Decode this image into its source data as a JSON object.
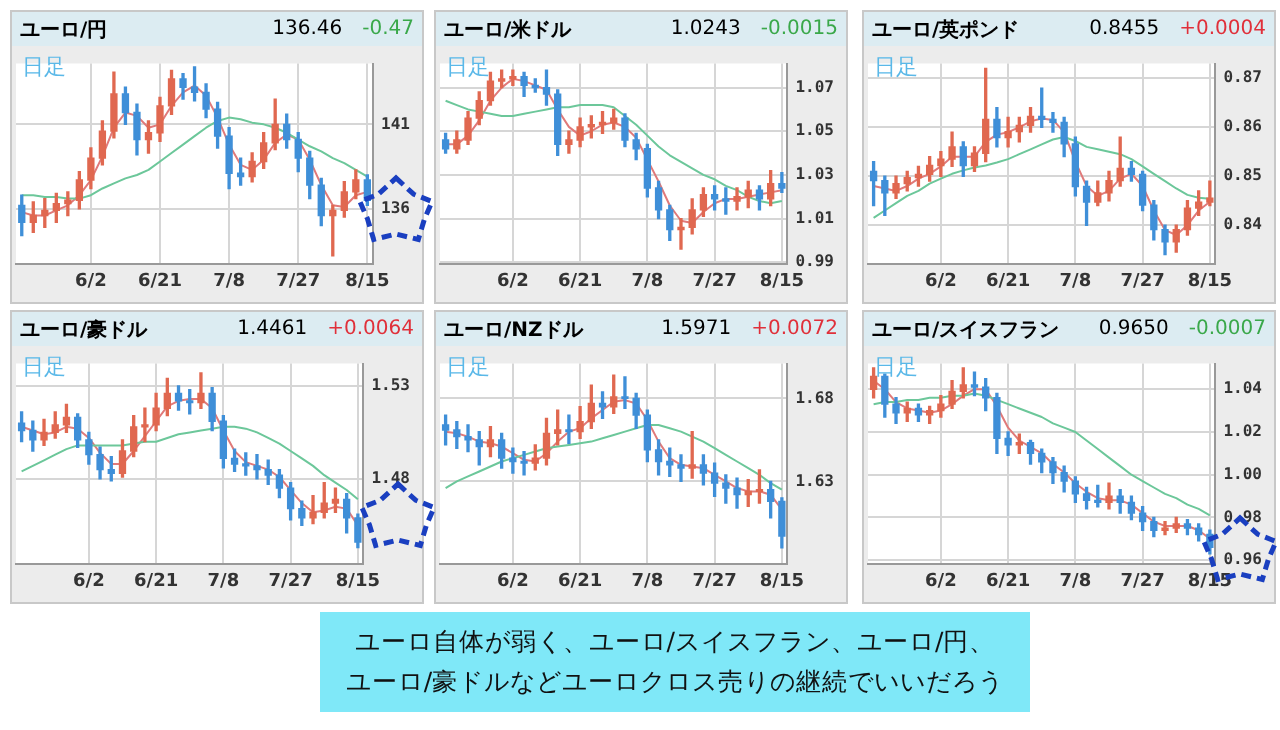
{
  "chart_data": [
    {
      "type": "candlestick",
      "title": "ユーロ/円",
      "annotations": [
        "136.46",
        "-0.47",
        "日足"
      ],
      "categories": [
        null,
        null,
        null,
        null,
        null,
        null,
        "6/2",
        null,
        null,
        null,
        null,
        null,
        "6/21",
        null,
        null,
        null,
        null,
        null,
        "7/8",
        null,
        null,
        null,
        null,
        null,
        "7/27",
        null,
        null,
        null,
        null,
        null,
        "8/15"
      ],
      "ohlc": [
        [
          136.2,
          136.8,
          134.4,
          135.2
        ],
        [
          135.2,
          136.4,
          134.6,
          135.6
        ],
        [
          135.6,
          136.6,
          134.9,
          135.9
        ],
        [
          135.9,
          136.9,
          135.2,
          136.3
        ],
        [
          136.3,
          137.0,
          135.6,
          136.5
        ],
        [
          136.5,
          138.2,
          136.0,
          137.7
        ],
        [
          137.7,
          139.6,
          137.2,
          139.0
        ],
        [
          139.0,
          141.2,
          138.6,
          140.6
        ],
        [
          140.6,
          144.1,
          140.2,
          142.8
        ],
        [
          142.8,
          143.2,
          141.0,
          141.7
        ],
        [
          141.7,
          142.2,
          139.2,
          140.1
        ],
        [
          140.1,
          141.2,
          139.3,
          140.5
        ],
        [
          140.5,
          142.6,
          140.0,
          142.1
        ],
        [
          142.1,
          144.2,
          141.6,
          143.7
        ],
        [
          143.7,
          144.0,
          142.5,
          143.2
        ],
        [
          143.2,
          144.4,
          142.4,
          142.9
        ],
        [
          142.9,
          143.4,
          141.4,
          141.9
        ],
        [
          141.9,
          142.3,
          139.6,
          140.3
        ],
        [
          140.3,
          140.8,
          137.2,
          138.1
        ],
        [
          138.1,
          139.0,
          137.4,
          137.9
        ],
        [
          137.9,
          139.3,
          137.6,
          138.8
        ],
        [
          138.8,
          140.5,
          138.4,
          139.9
        ],
        [
          139.9,
          142.5,
          139.5,
          141.0
        ],
        [
          141.0,
          141.6,
          139.6,
          140.1
        ],
        [
          140.1,
          140.5,
          138.2,
          139.0
        ],
        [
          139.0,
          139.4,
          136.6,
          137.4
        ],
        [
          137.4,
          137.8,
          135.0,
          135.6
        ],
        [
          135.6,
          136.2,
          133.2,
          135.9
        ],
        [
          135.9,
          137.6,
          135.5,
          137.0
        ],
        [
          137.0,
          138.3,
          136.6,
          137.7
        ],
        [
          137.7,
          138.0,
          136.2,
          136.5
        ]
      ],
      "colors": [
        "#3f8fd8",
        "#e06850",
        "#e06850",
        "#e06850",
        "#e06850",
        "#e06850",
        "#e06850",
        "#e06850",
        "#e06850",
        "#3f8fd8",
        "#3f8fd8",
        "#e06850",
        "#e06850",
        "#e06850",
        "#3f8fd8",
        "#3f8fd8",
        "#3f8fd8",
        "#3f8fd8",
        "#3f8fd8",
        "#3f8fd8",
        "#e06850",
        "#e06850",
        "#e06850",
        "#3f8fd8",
        "#3f8fd8",
        "#3f8fd8",
        "#3f8fd8",
        "#e06850",
        "#e06850",
        "#e06850",
        "#3f8fd8"
      ],
      "series": [
        {
          "type": "line",
          "color": "#6cc79a",
          "values": [
            136.8,
            136.8,
            136.7,
            136.7,
            136.6,
            136.6,
            136.8,
            137.2,
            137.5,
            137.8,
            138.0,
            138.3,
            138.8,
            139.3,
            139.8,
            140.3,
            140.8,
            141.2,
            141.4,
            141.3,
            141.1,
            141.0,
            140.8,
            140.5,
            140.1,
            139.7,
            139.4,
            139.0,
            138.7,
            138.3,
            137.9
          ]
        },
        {
          "type": "line",
          "color": "#e07a7a",
          "values": [
            135.8,
            135.6,
            135.6,
            135.9,
            136.2,
            136.8,
            137.7,
            139.1,
            140.8,
            141.7,
            141.5,
            140.8,
            141.0,
            142.1,
            142.9,
            143.3,
            142.7,
            141.4,
            139.8,
            138.6,
            138.3,
            138.9,
            139.9,
            140.4,
            140.1,
            138.9,
            137.4,
            136.2,
            136.1,
            136.8,
            137.0
          ]
        }
      ],
      "ylim": [
        132.7,
        144.6
      ],
      "yticks": [
        141,
        136
      ],
      "grid": true
    },
    {
      "type": "candlestick",
      "title": "ユーロ/米ドル",
      "annotations": [
        "1.0243",
        "-0.0015",
        "日足"
      ],
      "categories": [
        null,
        null,
        null,
        null,
        null,
        null,
        "6/2",
        null,
        null,
        null,
        null,
        null,
        "6/21",
        null,
        null,
        null,
        null,
        null,
        "7/8",
        null,
        null,
        null,
        null,
        null,
        "7/27",
        null,
        null,
        null,
        null,
        null,
        "8/15"
      ],
      "ohlc": [
        [
          1.046,
          1.049,
          1.04,
          1.042
        ],
        [
          1.042,
          1.05,
          1.04,
          1.046
        ],
        [
          1.046,
          1.059,
          1.044,
          1.056
        ],
        [
          1.056,
          1.068,
          1.053,
          1.064
        ],
        [
          1.064,
          1.077,
          1.062,
          1.073
        ],
        [
          1.073,
          1.078,
          1.07,
          1.074
        ],
        [
          1.074,
          1.078,
          1.071,
          1.075
        ],
        [
          1.075,
          1.077,
          1.066,
          1.071
        ],
        [
          1.071,
          1.074,
          1.068,
          1.07
        ],
        [
          1.07,
          1.078,
          1.062,
          1.067
        ],
        [
          1.067,
          1.069,
          1.039,
          1.044
        ],
        [
          1.044,
          1.05,
          1.04,
          1.046
        ],
        [
          1.046,
          1.056,
          1.043,
          1.052
        ],
        [
          1.052,
          1.057,
          1.047,
          1.053
        ],
        [
          1.053,
          1.059,
          1.049,
          1.054
        ],
        [
          1.054,
          1.06,
          1.051,
          1.056
        ],
        [
          1.056,
          1.058,
          1.043,
          1.046
        ],
        [
          1.046,
          1.049,
          1.037,
          1.042
        ],
        [
          1.042,
          1.044,
          1.02,
          1.024
        ],
        [
          1.024,
          1.027,
          1.01,
          1.014
        ],
        [
          1.014,
          1.016,
          1.0,
          1.005
        ],
        [
          1.005,
          1.01,
          0.996,
          1.006
        ],
        [
          1.006,
          1.019,
          1.003,
          1.014
        ],
        [
          1.014,
          1.024,
          1.011,
          1.021
        ],
        [
          1.021,
          1.025,
          1.014,
          1.019
        ],
        [
          1.019,
          1.024,
          1.012,
          1.018
        ],
        [
          1.018,
          1.024,
          1.014,
          1.02
        ],
        [
          1.02,
          1.027,
          1.015,
          1.023
        ],
        [
          1.023,
          1.025,
          1.014,
          1.019
        ],
        [
          1.019,
          1.032,
          1.016,
          1.026
        ],
        [
          1.026,
          1.031,
          1.022,
          1.024
        ]
      ],
      "colors": [
        "#3f8fd8",
        "#e06850",
        "#e06850",
        "#e06850",
        "#e06850",
        "#e06850",
        "#e06850",
        "#3f8fd8",
        "#3f8fd8",
        "#3f8fd8",
        "#3f8fd8",
        "#e06850",
        "#e06850",
        "#e06850",
        "#e06850",
        "#e06850",
        "#3f8fd8",
        "#3f8fd8",
        "#3f8fd8",
        "#3f8fd8",
        "#3f8fd8",
        "#e06850",
        "#e06850",
        "#e06850",
        "#3f8fd8",
        "#3f8fd8",
        "#e06850",
        "#e06850",
        "#3f8fd8",
        "#e06850",
        "#3f8fd8"
      ],
      "series": [
        {
          "type": "line",
          "color": "#6cc79a",
          "values": [
            1.064,
            1.062,
            1.06,
            1.059,
            1.058,
            1.057,
            1.057,
            1.058,
            1.059,
            1.06,
            1.061,
            1.061,
            1.062,
            1.062,
            1.062,
            1.061,
            1.057,
            1.053,
            1.048,
            1.043,
            1.039,
            1.036,
            1.033,
            1.03,
            1.028,
            1.025,
            1.023,
            1.02,
            1.018,
            1.017,
            1.018
          ]
        },
        {
          "type": "line",
          "color": "#e07a7a",
          "values": [
            1.044,
            1.044,
            1.048,
            1.055,
            1.064,
            1.07,
            1.074,
            1.073,
            1.071,
            1.069,
            1.06,
            1.052,
            1.048,
            1.05,
            1.053,
            1.054,
            1.052,
            1.047,
            1.037,
            1.027,
            1.016,
            1.009,
            1.008,
            1.013,
            1.017,
            1.019,
            1.019,
            1.02,
            1.021,
            1.022,
            1.023
          ]
        }
      ],
      "ylim": [
        0.989,
        1.081
      ],
      "yticks": [
        1.07,
        1.05,
        1.03,
        1.01,
        0.99
      ],
      "grid": true
    },
    {
      "type": "candlestick",
      "title": "ユーロ/英ポンド",
      "annotations": [
        "0.8455",
        "+0.0004",
        "日足"
      ],
      "categories": [
        null,
        null,
        null,
        null,
        null,
        null,
        "6/2",
        null,
        null,
        null,
        null,
        null,
        "6/21",
        null,
        null,
        null,
        null,
        null,
        "7/8",
        null,
        null,
        null,
        null,
        null,
        "7/27",
        null,
        null,
        null,
        null,
        null,
        "8/15"
      ],
      "ohlc": [
        [
          0.851,
          0.853,
          0.844,
          0.8491
        ],
        [
          0.8491,
          0.85,
          0.842,
          0.8466
        ],
        [
          0.8466,
          0.85,
          0.8455,
          0.8485
        ],
        [
          0.8485,
          0.851,
          0.847,
          0.8497
        ],
        [
          0.8497,
          0.852,
          0.848,
          0.8504
        ],
        [
          0.8504,
          0.854,
          0.849,
          0.8522
        ],
        [
          0.8522,
          0.855,
          0.85,
          0.8535
        ],
        [
          0.8535,
          0.859,
          0.852,
          0.856
        ],
        [
          0.856,
          0.857,
          0.85,
          0.8522
        ],
        [
          0.8522,
          0.856,
          0.851,
          0.8547
        ],
        [
          0.8547,
          0.872,
          0.853,
          0.8616
        ],
        [
          0.8616,
          0.864,
          0.856,
          0.8579
        ],
        [
          0.8579,
          0.862,
          0.856,
          0.8591
        ],
        [
          0.8591,
          0.862,
          0.857,
          0.8604
        ],
        [
          0.8604,
          0.864,
          0.859,
          0.8622
        ],
        [
          0.8622,
          0.868,
          0.86,
          0.8616
        ],
        [
          0.8616,
          0.863,
          0.859,
          0.861
        ],
        [
          0.861,
          0.862,
          0.854,
          0.8566
        ],
        [
          0.8566,
          0.858,
          0.846,
          0.8479
        ],
        [
          0.8479,
          0.849,
          0.84,
          0.8447
        ],
        [
          0.8447,
          0.849,
          0.844,
          0.8466
        ],
        [
          0.8466,
          0.851,
          0.845,
          0.8491
        ],
        [
          0.8491,
          0.858,
          0.848,
          0.8516
        ],
        [
          0.8516,
          0.853,
          0.849,
          0.8504
        ],
        [
          0.8504,
          0.851,
          0.843,
          0.8441
        ],
        [
          0.8441,
          0.845,
          0.837,
          0.8391
        ],
        [
          0.8391,
          0.84,
          0.834,
          0.8366
        ],
        [
          0.8366,
          0.84,
          0.8345,
          0.8391
        ],
        [
          0.8391,
          0.845,
          0.838,
          0.8435
        ],
        [
          0.8435,
          0.847,
          0.842,
          0.8447
        ],
        [
          0.8447,
          0.849,
          0.844,
          0.8455
        ]
      ],
      "colors": [
        "#3f8fd8",
        "#3f8fd8",
        "#e06850",
        "#e06850",
        "#e06850",
        "#e06850",
        "#e06850",
        "#e06850",
        "#3f8fd8",
        "#e06850",
        "#e06850",
        "#3f8fd8",
        "#e06850",
        "#e06850",
        "#e06850",
        "#3f8fd8",
        "#3f8fd8",
        "#3f8fd8",
        "#3f8fd8",
        "#3f8fd8",
        "#e06850",
        "#e06850",
        "#e06850",
        "#3f8fd8",
        "#3f8fd8",
        "#3f8fd8",
        "#3f8fd8",
        "#e06850",
        "#e06850",
        "#e06850",
        "#e06850"
      ],
      "series": [
        {
          "type": "line",
          "color": "#6cc79a",
          "values": [
            0.8415,
            0.843,
            0.8445,
            0.846,
            0.847,
            0.8485,
            0.8495,
            0.8505,
            0.8512,
            0.8518,
            0.8522,
            0.8528,
            0.8535,
            0.8545,
            0.8555,
            0.8565,
            0.8575,
            0.858,
            0.8572,
            0.856,
            0.8555,
            0.855,
            0.8545,
            0.8535,
            0.852,
            0.8505,
            0.849,
            0.8475,
            0.8462,
            0.8456,
            0.8454
          ]
        },
        {
          "type": "line",
          "color": "#e07a7a",
          "values": [
            0.848,
            0.8475,
            0.847,
            0.848,
            0.8495,
            0.8505,
            0.852,
            0.854,
            0.854,
            0.854,
            0.857,
            0.8585,
            0.859,
            0.86,
            0.8612,
            0.8618,
            0.8615,
            0.859,
            0.853,
            0.848,
            0.846,
            0.847,
            0.8495,
            0.8505,
            0.848,
            0.843,
            0.839,
            0.838,
            0.84,
            0.843,
            0.8448
          ]
        }
      ],
      "ylim": [
        0.832,
        0.873
      ],
      "yticks": [
        0.87,
        0.86,
        0.85,
        0.84
      ],
      "grid": true
    },
    {
      "type": "candlestick",
      "title": "ユーロ/豪ドル",
      "annotations": [
        "1.4461",
        "+0.0064",
        "日足"
      ],
      "categories": [
        null,
        null,
        null,
        null,
        null,
        null,
        "6/2",
        null,
        null,
        null,
        null,
        null,
        "6/21",
        null,
        null,
        null,
        null,
        null,
        "7/8",
        null,
        null,
        null,
        null,
        null,
        "7/27",
        null,
        null,
        null,
        null,
        null,
        "8/15"
      ],
      "ohlc": [
        [
          1.51,
          1.516,
          1.5,
          1.506
        ],
        [
          1.506,
          1.511,
          1.495,
          1.501
        ],
        [
          1.501,
          1.512,
          1.498,
          1.505
        ],
        [
          1.505,
          1.516,
          1.502,
          1.509
        ],
        [
          1.509,
          1.52,
          1.505,
          1.513
        ],
        [
          1.513,
          1.515,
          1.497,
          1.501
        ],
        [
          1.501,
          1.505,
          1.488,
          1.493
        ],
        [
          1.493,
          1.497,
          1.48,
          1.485
        ],
        [
          1.485,
          1.492,
          1.479,
          1.483
        ],
        [
          1.483,
          1.501,
          1.481,
          1.495
        ],
        [
          1.495,
          1.514,
          1.492,
          1.508
        ],
        [
          1.508,
          1.518,
          1.5,
          1.509
        ],
        [
          1.509,
          1.526,
          1.506,
          1.518
        ],
        [
          1.518,
          1.534,
          1.514,
          1.526
        ],
        [
          1.526,
          1.53,
          1.517,
          1.522
        ],
        [
          1.522,
          1.528,
          1.515,
          1.521
        ],
        [
          1.521,
          1.537,
          1.518,
          1.526
        ],
        [
          1.526,
          1.529,
          1.506,
          1.511
        ],
        [
          1.511,
          1.514,
          1.486,
          1.491
        ],
        [
          1.491,
          1.496,
          1.484,
          1.488
        ],
        [
          1.488,
          1.494,
          1.482,
          1.487
        ],
        [
          1.487,
          1.493,
          1.48,
          1.485
        ],
        [
          1.485,
          1.49,
          1.477,
          1.482
        ],
        [
          1.482,
          1.485,
          1.47,
          1.475
        ],
        [
          1.475,
          1.478,
          1.458,
          1.464
        ],
        [
          1.464,
          1.468,
          1.455,
          1.459
        ],
        [
          1.459,
          1.471,
          1.456,
          1.462
        ],
        [
          1.462,
          1.478,
          1.459,
          1.467
        ],
        [
          1.467,
          1.475,
          1.462,
          1.469
        ],
        [
          1.469,
          1.472,
          1.451,
          1.459
        ],
        [
          1.459,
          1.461,
          1.443,
          1.446
        ]
      ],
      "colors": [
        "#3f8fd8",
        "#3f8fd8",
        "#e06850",
        "#e06850",
        "#e06850",
        "#3f8fd8",
        "#3f8fd8",
        "#3f8fd8",
        "#3f8fd8",
        "#e06850",
        "#e06850",
        "#e06850",
        "#e06850",
        "#e06850",
        "#3f8fd8",
        "#3f8fd8",
        "#e06850",
        "#3f8fd8",
        "#3f8fd8",
        "#3f8fd8",
        "#3f8fd8",
        "#3f8fd8",
        "#3f8fd8",
        "#3f8fd8",
        "#3f8fd8",
        "#3f8fd8",
        "#e06850",
        "#e06850",
        "#e06850",
        "#3f8fd8",
        "#3f8fd8"
      ],
      "series": [
        {
          "type": "line",
          "color": "#6cc79a",
          "values": [
            1.484,
            1.487,
            1.49,
            1.493,
            1.496,
            1.498,
            1.498,
            1.498,
            1.498,
            1.498,
            1.499,
            1.5,
            1.5,
            1.502,
            1.504,
            1.505,
            1.506,
            1.507,
            1.508,
            1.508,
            1.507,
            1.505,
            1.502,
            1.499,
            1.495,
            1.491,
            1.487,
            1.482,
            1.478,
            1.474,
            1.469
          ]
        },
        {
          "type": "line",
          "color": "#e07a7a",
          "values": [
            1.508,
            1.506,
            1.504,
            1.505,
            1.508,
            1.507,
            1.502,
            1.494,
            1.488,
            1.488,
            1.495,
            1.503,
            1.511,
            1.519,
            1.522,
            1.523,
            1.523,
            1.518,
            1.506,
            1.495,
            1.489,
            1.487,
            1.485,
            1.481,
            1.474,
            1.467,
            1.462,
            1.463,
            1.465,
            1.464,
            1.455
          ]
        }
      ],
      "ylim": [
        1.434,
        1.542
      ],
      "yticks": [
        1.53,
        1.48
      ],
      "grid": true
    },
    {
      "type": "candlestick",
      "title": "ユーロ/NZドル",
      "annotations": [
        "1.5971",
        "+0.0072",
        "日足"
      ],
      "categories": [
        null,
        null,
        null,
        null,
        null,
        null,
        "6/2",
        null,
        null,
        null,
        null,
        null,
        "6/21",
        null,
        null,
        null,
        null,
        null,
        "7/8",
        null,
        null,
        null,
        null,
        null,
        "7/27",
        null,
        null,
        null,
        null,
        null,
        "8/15"
      ],
      "ohlc": [
        [
          1.664,
          1.67,
          1.652,
          1.661
        ],
        [
          1.661,
          1.666,
          1.65,
          1.657
        ],
        [
          1.657,
          1.664,
          1.648,
          1.655
        ],
        [
          1.655,
          1.66,
          1.64,
          1.651
        ],
        [
          1.651,
          1.663,
          1.645,
          1.655
        ],
        [
          1.655,
          1.659,
          1.638,
          1.644
        ],
        [
          1.644,
          1.65,
          1.635,
          1.642
        ],
        [
          1.642,
          1.648,
          1.634,
          1.641
        ],
        [
          1.641,
          1.652,
          1.637,
          1.644
        ],
        [
          1.644,
          1.668,
          1.64,
          1.659
        ],
        [
          1.659,
          1.673,
          1.652,
          1.661
        ],
        [
          1.661,
          1.67,
          1.653,
          1.66
        ],
        [
          1.66,
          1.675,
          1.656,
          1.666
        ],
        [
          1.666,
          1.688,
          1.662,
          1.677
        ],
        [
          1.677,
          1.684,
          1.668,
          1.675
        ],
        [
          1.675,
          1.694,
          1.671,
          1.681
        ],
        [
          1.681,
          1.693,
          1.674,
          1.68
        ],
        [
          1.68,
          1.683,
          1.662,
          1.67
        ],
        [
          1.67,
          1.673,
          1.642,
          1.649
        ],
        [
          1.649,
          1.655,
          1.634,
          1.642
        ],
        [
          1.642,
          1.65,
          1.633,
          1.64
        ],
        [
          1.64,
          1.646,
          1.63,
          1.638
        ],
        [
          1.638,
          1.66,
          1.632,
          1.64
        ],
        [
          1.64,
          1.646,
          1.628,
          1.635
        ],
        [
          1.635,
          1.641,
          1.621,
          1.629
        ],
        [
          1.629,
          1.634,
          1.617,
          1.626
        ],
        [
          1.626,
          1.632,
          1.614,
          1.622
        ],
        [
          1.622,
          1.631,
          1.615,
          1.624
        ],
        [
          1.624,
          1.637,
          1.617,
          1.625
        ],
        [
          1.625,
          1.63,
          1.608,
          1.618
        ],
        [
          1.618,
          1.62,
          1.59,
          1.597
        ]
      ],
      "colors": [
        "#3f8fd8",
        "#3f8fd8",
        "#3f8fd8",
        "#3f8fd8",
        "#e06850",
        "#3f8fd8",
        "#3f8fd8",
        "#3f8fd8",
        "#e06850",
        "#e06850",
        "#e06850",
        "#3f8fd8",
        "#e06850",
        "#e06850",
        "#3f8fd8",
        "#e06850",
        "#3f8fd8",
        "#3f8fd8",
        "#3f8fd8",
        "#3f8fd8",
        "#3f8fd8",
        "#3f8fd8",
        "#e06850",
        "#3f8fd8",
        "#3f8fd8",
        "#3f8fd8",
        "#3f8fd8",
        "#e06850",
        "#e06850",
        "#3f8fd8",
        "#3f8fd8"
      ],
      "series": [
        {
          "type": "line",
          "color": "#6cc79a",
          "values": [
            1.626,
            1.63,
            1.633,
            1.636,
            1.639,
            1.642,
            1.644,
            1.646,
            1.648,
            1.65,
            1.651,
            1.652,
            1.653,
            1.654,
            1.656,
            1.658,
            1.66,
            1.662,
            1.664,
            1.664,
            1.662,
            1.66,
            1.657,
            1.654,
            1.65,
            1.646,
            1.642,
            1.638,
            1.634,
            1.629,
            1.625
          ]
        },
        {
          "type": "line",
          "color": "#e07a7a",
          "values": [
            1.66,
            1.659,
            1.657,
            1.654,
            1.653,
            1.651,
            1.647,
            1.643,
            1.642,
            1.647,
            1.654,
            1.66,
            1.662,
            1.668,
            1.673,
            1.678,
            1.679,
            1.677,
            1.667,
            1.654,
            1.644,
            1.64,
            1.639,
            1.638,
            1.634,
            1.63,
            1.626,
            1.624,
            1.624,
            1.622,
            1.613
          ]
        }
      ],
      "ylim": [
        1.58,
        1.701
      ],
      "yticks": [
        1.68,
        1.63
      ],
      "grid": true
    },
    {
      "type": "candlestick",
      "title": "ユーロ/スイスフラン",
      "annotations": [
        "0.9650",
        "-0.0007",
        "日足"
      ],
      "categories": [
        null,
        null,
        null,
        null,
        null,
        null,
        "6/2",
        null,
        null,
        null,
        null,
        null,
        "6/21",
        null,
        null,
        null,
        null,
        null,
        "7/8",
        null,
        null,
        null,
        null,
        null,
        "7/27",
        null,
        null,
        null,
        null,
        null,
        "8/15"
      ],
      "ohlc": [
        [
          1.04,
          1.05,
          1.036,
          1.046
        ],
        [
          1.046,
          1.047,
          1.027,
          1.033
        ],
        [
          1.033,
          1.036,
          1.024,
          1.029
        ],
        [
          1.029,
          1.034,
          1.025,
          1.031
        ],
        [
          1.031,
          1.033,
          1.025,
          1.028
        ],
        [
          1.028,
          1.032,
          1.024,
          1.03
        ],
        [
          1.03,
          1.037,
          1.027,
          1.033
        ],
        [
          1.033,
          1.044,
          1.031,
          1.039
        ],
        [
          1.039,
          1.05,
          1.036,
          1.042
        ],
        [
          1.042,
          1.048,
          1.037,
          1.041
        ],
        [
          1.041,
          1.045,
          1.03,
          1.036
        ],
        [
          1.036,
          1.038,
          1.01,
          1.017
        ],
        [
          1.017,
          1.02,
          1.009,
          1.014
        ],
        [
          1.014,
          1.019,
          1.01,
          1.015
        ],
        [
          1.015,
          1.016,
          1.005,
          1.01
        ],
        [
          1.01,
          1.012,
          1.001,
          1.006
        ],
        [
          1.006,
          1.008,
          0.996,
          1.001
        ],
        [
          1.001,
          1.004,
          0.992,
          0.997
        ],
        [
          0.997,
          0.999,
          0.987,
          0.991
        ],
        [
          0.991,
          0.994,
          0.984,
          0.988
        ],
        [
          0.988,
          0.995,
          0.985,
          0.987
        ],
        [
          0.987,
          0.996,
          0.984,
          0.99
        ],
        [
          0.99,
          0.993,
          0.982,
          0.987
        ],
        [
          0.987,
          0.99,
          0.979,
          0.982
        ],
        [
          0.982,
          0.985,
          0.974,
          0.978
        ],
        [
          0.978,
          0.98,
          0.971,
          0.974
        ],
        [
          0.974,
          0.978,
          0.972,
          0.975
        ],
        [
          0.975,
          0.98,
          0.973,
          0.977
        ],
        [
          0.977,
          0.979,
          0.972,
          0.975
        ],
        [
          0.975,
          0.977,
          0.969,
          0.972
        ],
        [
          0.972,
          0.974,
          0.963,
          0.966
        ]
      ],
      "colors": [
        "#e06850",
        "#3f8fd8",
        "#3f8fd8",
        "#e06850",
        "#3f8fd8",
        "#e06850",
        "#e06850",
        "#e06850",
        "#e06850",
        "#3f8fd8",
        "#3f8fd8",
        "#3f8fd8",
        "#3f8fd8",
        "#e06850",
        "#3f8fd8",
        "#3f8fd8",
        "#3f8fd8",
        "#3f8fd8",
        "#3f8fd8",
        "#3f8fd8",
        "#3f8fd8",
        "#e06850",
        "#3f8fd8",
        "#3f8fd8",
        "#3f8fd8",
        "#3f8fd8",
        "#e06850",
        "#e06850",
        "#3f8fd8",
        "#3f8fd8",
        "#3f8fd8"
      ],
      "series": [
        {
          "type": "line",
          "color": "#6cc79a",
          "values": [
            1.033,
            1.034,
            1.034,
            1.035,
            1.035,
            1.036,
            1.036,
            1.037,
            1.037,
            1.038,
            1.037,
            1.035,
            1.033,
            1.031,
            1.029,
            1.027,
            1.024,
            1.022,
            1.02,
            1.016,
            1.012,
            1.008,
            1.004,
            1.0,
            0.997,
            0.994,
            0.991,
            0.989,
            0.986,
            0.984,
            0.981
          ]
        },
        {
          "type": "line",
          "color": "#e07a7a",
          "values": [
            1.044,
            1.04,
            1.034,
            1.031,
            1.03,
            1.029,
            1.03,
            1.033,
            1.037,
            1.04,
            1.04,
            1.032,
            1.022,
            1.016,
            1.013,
            1.01,
            1.005,
            1.001,
            0.996,
            0.992,
            0.989,
            0.988,
            0.988,
            0.986,
            0.982,
            0.978,
            0.976,
            0.976,
            0.976,
            0.974,
            0.97
          ]
        }
      ],
      "ylim": [
        0.958,
        1.052
      ],
      "yticks": [
        1.04,
        1.02,
        {
          "value": 1.0,
          "label": "1.00"
        },
        0.98,
        0.96
      ],
      "grid": true
    },
    {
      "type": "other",
      "annotations": [
        "ユーロ自体が弱く、ユーロ/スイスフラン、ユーロ/円、",
        "ユーロ/豪ドルなどユーロクロス売りの継続でいいだろう"
      ]
    }
  ]
}
